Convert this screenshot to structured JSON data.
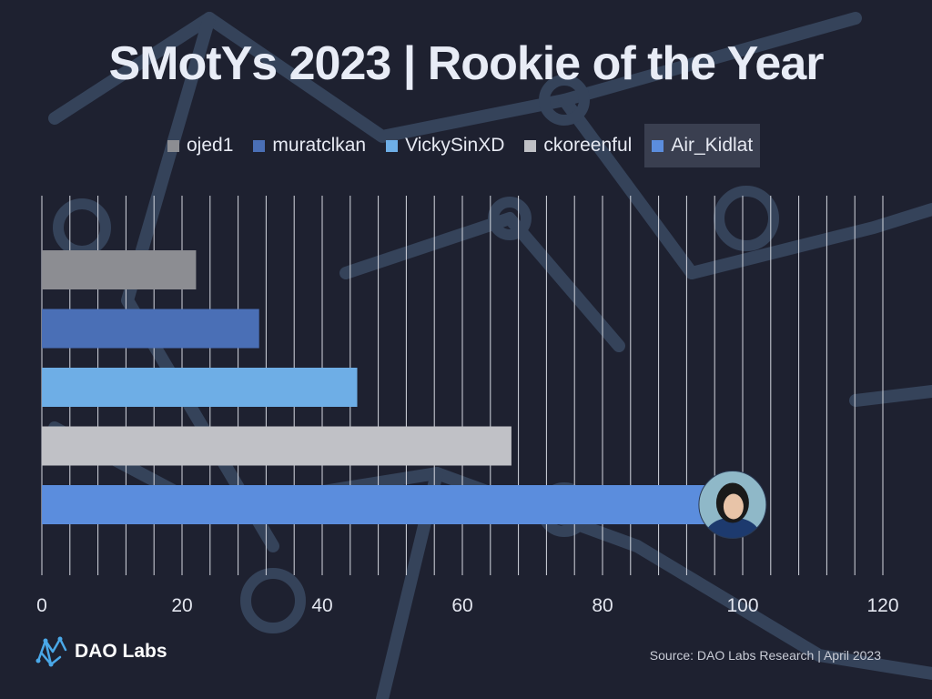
{
  "title": "SMotYs 2023 | Rookie of the Year",
  "legend": [
    {
      "label": "ojed1",
      "color": "#8c8d92"
    },
    {
      "label": "muratclkan",
      "color": "#4a6fb6"
    },
    {
      "label": "VickySinXD",
      "color": "#6eaee6"
    },
    {
      "label": "ckoreenful",
      "color": "#c0c1c6"
    },
    {
      "label": "Air_Kidlat",
      "color": "#5b8ddd"
    }
  ],
  "chart_data": {
    "type": "bar",
    "orientation": "horizontal",
    "title": "SMotYs 2023 | Rookie of the Year",
    "xlim": [
      0,
      120
    ],
    "xticks": [
      0,
      20,
      40,
      60,
      80,
      100,
      120
    ],
    "series": [
      {
        "name": "ojed1",
        "value": 22,
        "color": "#8c8d92"
      },
      {
        "name": "muratclkan",
        "value": 31,
        "color": "#4a6fb6"
      },
      {
        "name": "VickySinXD",
        "value": 45,
        "color": "#6eaee6"
      },
      {
        "name": "ckoreenful",
        "value": 67,
        "color": "#c0c1c6"
      },
      {
        "name": "Air_Kidlat",
        "value": 97,
        "color": "#5b8ddd"
      }
    ],
    "highlighted": "Air_Kidlat",
    "grid": true,
    "legend_position": "top"
  },
  "footer": {
    "logo_text": "DAO Labs",
    "source": "Source: DAO Labs Research | April 2023"
  }
}
